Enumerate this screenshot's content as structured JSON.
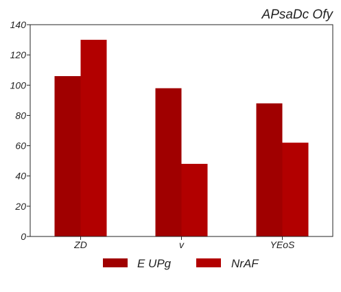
{
  "chart_data": {
    "type": "bar",
    "title": "APsaDc Ofy",
    "xlabel": "",
    "ylabel": "",
    "categories": [
      "ZD",
      "v",
      "YEoS"
    ],
    "series": [
      {
        "name": "E UPg",
        "values": [
          106,
          98,
          88
        ],
        "color": "#a00000"
      },
      {
        "name": "NrAF",
        "values": [
          130,
          48,
          62
        ],
        "color": "#b20000"
      }
    ],
    "ylim": [
      0,
      140
    ],
    "yticks": [
      0,
      20,
      40,
      60,
      80,
      100,
      120,
      140
    ],
    "grid": false,
    "legend_position": "bottom-center"
  }
}
